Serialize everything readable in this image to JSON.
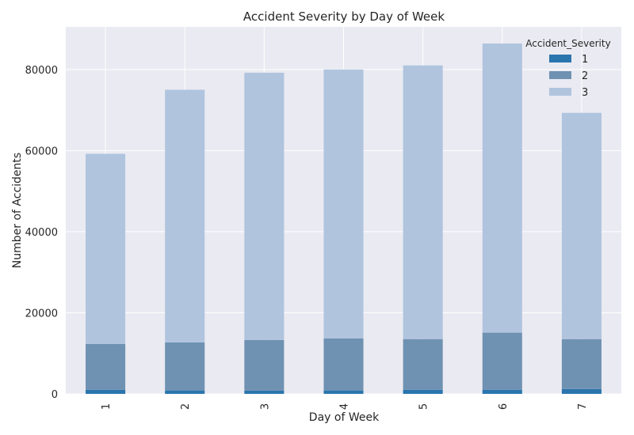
{
  "chart_data": {
    "type": "bar",
    "stacked": true,
    "title": "Accident Severity by Day of Week",
    "xlabel": "Day of Week",
    "ylabel": "Number of Accidents",
    "categories": [
      "1",
      "2",
      "3",
      "4",
      "5",
      "6",
      "7"
    ],
    "ylim": [
      0,
      90500
    ],
    "yticks": [
      0,
      20000,
      40000,
      60000,
      80000
    ],
    "ytick_labels": [
      "0",
      "20000",
      "40000",
      "60000",
      "80000"
    ],
    "grid": true,
    "legend_title": "Accident_Severity",
    "legend_position": "top-right",
    "series": [
      {
        "name": "1",
        "color": "#2a75ad",
        "values": [
          1000,
          850,
          800,
          850,
          1000,
          1000,
          1200
        ]
      },
      {
        "name": "2",
        "color": "#6f92b2",
        "values": [
          11300,
          11850,
          12500,
          12850,
          12500,
          14100,
          12300
        ]
      },
      {
        "name": "3",
        "color": "#b0c4de",
        "values": [
          46900,
          62300,
          65900,
          66300,
          67500,
          71300,
          55800
        ]
      }
    ],
    "background_color": "#eaeaf2"
  }
}
